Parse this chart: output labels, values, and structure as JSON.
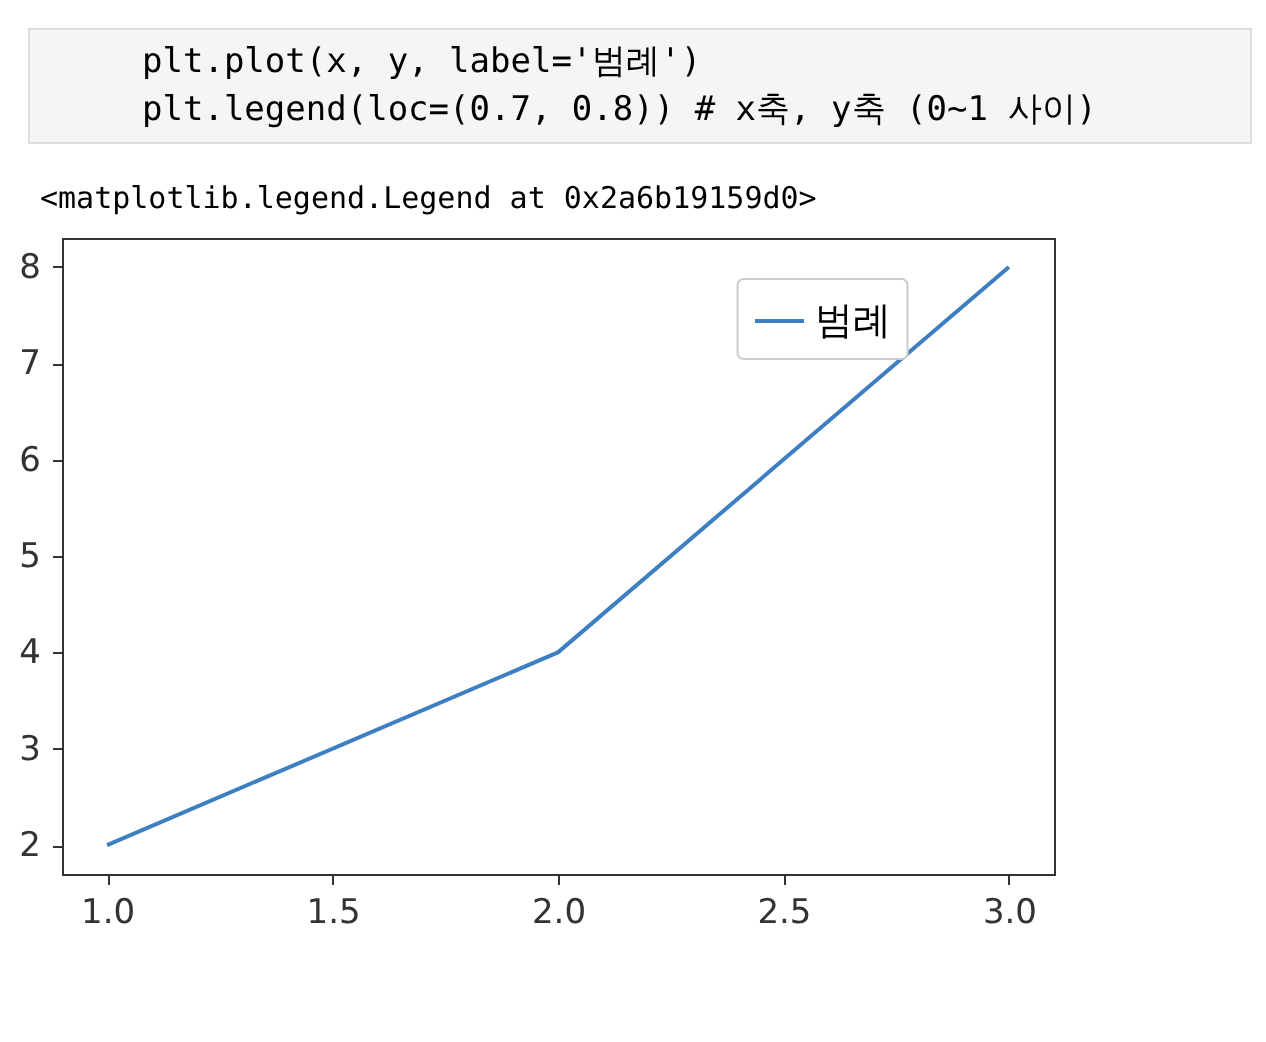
{
  "chart_data": {
    "type": "line",
    "annotations": [
      "plt.plot(x, y, label='범례')",
      "plt.legend(loc=(0.7, 0.8)) # x축, y축 (0~1 사이)",
      "<matplotlib.legend.Legend at 0x2a6b19159d0>"
    ],
    "x": [
      1,
      2,
      3
    ],
    "series": [
      {
        "name": "범례",
        "color": "#3d7fc1",
        "values": [
          2,
          4,
          8
        ]
      }
    ],
    "xlim": [
      0.9,
      3.1
    ],
    "xticks": [
      {
        "value": 1,
        "label": "1.0"
      },
      {
        "value": 1.5,
        "label": "1.5"
      },
      {
        "value": 2,
        "label": "2.0"
      },
      {
        "value": 2.5,
        "label": "2.5"
      },
      {
        "value": 3,
        "label": "3.0"
      }
    ],
    "ylim": [
      1.7,
      8.3
    ],
    "yticks": [
      2,
      3,
      4,
      5,
      6,
      7,
      8
    ],
    "grid": false,
    "legend": "top right",
    "marker": "none",
    "line_style": "solid"
  }
}
